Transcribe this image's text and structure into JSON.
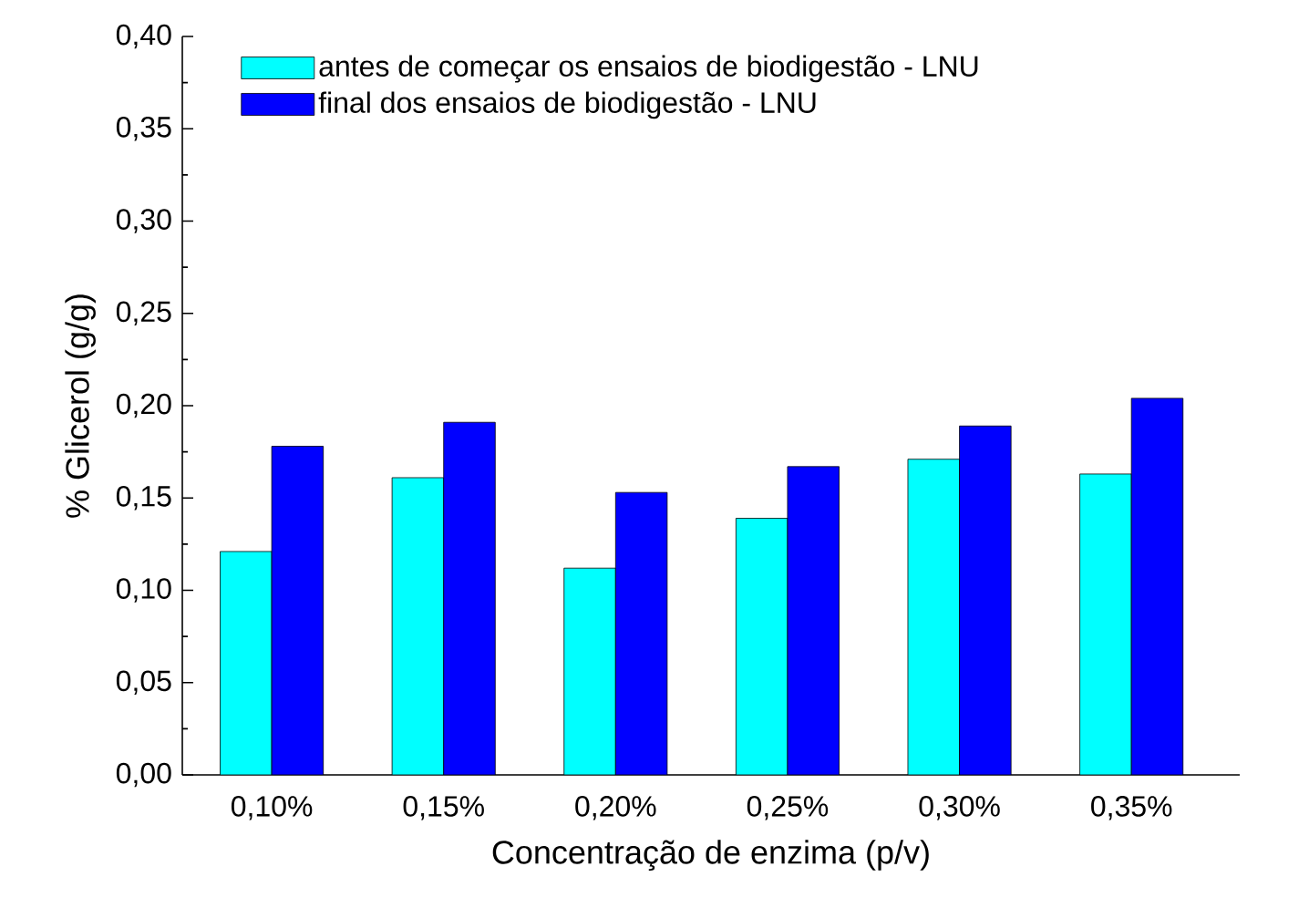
{
  "chart_data": {
    "type": "bar",
    "xlabel": "Concentração de enzima (p/v)",
    "ylabel": "% Glicerol (g/g)",
    "categories": [
      "0,10%",
      "0,15%",
      "0,20%",
      "0,25%",
      "0,30%",
      "0,35%"
    ],
    "series": [
      {
        "name": "antes de começar os ensaios de biodigestão - LNU",
        "color": "#00ffff",
        "values": [
          0.121,
          0.161,
          0.112,
          0.139,
          0.171,
          0.163
        ]
      },
      {
        "name": "final dos ensaios de biodigestão - LNU",
        "color": "#0000ff",
        "values": [
          0.178,
          0.191,
          0.153,
          0.167,
          0.189,
          0.204
        ]
      }
    ],
    "ylim": [
      0,
      0.4
    ],
    "yticks": [
      {
        "value": 0,
        "label": "0,00"
      },
      {
        "value": 0.05,
        "label": "0,05"
      },
      {
        "value": 0.1,
        "label": "0,10"
      },
      {
        "value": 0.15,
        "label": "0,15"
      },
      {
        "value": 0.2,
        "label": "0,20"
      },
      {
        "value": 0.25,
        "label": "0,25"
      },
      {
        "value": 0.3,
        "label": "0,30"
      },
      {
        "value": 0.35,
        "label": "0,35"
      },
      {
        "value": 0.4,
        "label": "0,40"
      }
    ],
    "grid": false,
    "legend": "top left"
  }
}
